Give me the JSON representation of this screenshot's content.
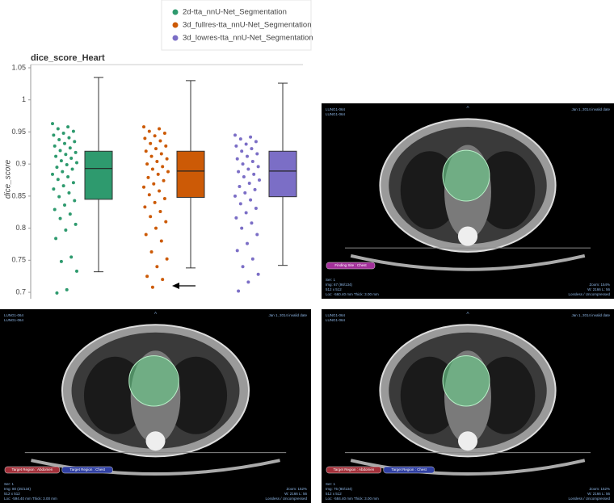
{
  "chart_data": {
    "type": "box",
    "title": "dice_score_Heart",
    "y_label": "dice_score",
    "ylim": [
      0.69,
      1.055
    ],
    "yticks": [
      0.7,
      0.75,
      0.8,
      0.85,
      0.9,
      0.95,
      1,
      1.05
    ],
    "grid": false,
    "series": [
      {
        "name": "2d-tta_nnU-Net_Segmentation",
        "color": "#2e9a6e",
        "whisker_low": 0.732,
        "q1": 0.845,
        "median": 0.893,
        "q3": 0.92,
        "whisker_high": 1.035,
        "values": [
          0.963,
          0.958,
          0.955,
          0.951,
          0.948,
          0.945,
          0.941,
          0.938,
          0.935,
          0.932,
          0.928,
          0.925,
          0.921,
          0.918,
          0.915,
          0.912,
          0.909,
          0.905,
          0.902,
          0.899,
          0.895,
          0.892,
          0.888,
          0.884,
          0.88,
          0.876,
          0.871,
          0.866,
          0.861,
          0.855,
          0.849,
          0.843,
          0.836,
          0.829,
          0.822,
          0.815,
          0.806,
          0.797,
          0.784,
          0.755,
          0.748,
          0.733,
          0.704,
          0.699
        ]
      },
      {
        "name": "3d_fullres-tta_nnU-Net_Segmentation",
        "color": "#cc5a06",
        "whisker_low": 0.738,
        "q1": 0.848,
        "median": 0.889,
        "q3": 0.92,
        "whisker_high": 1.03,
        "values": [
          0.958,
          0.955,
          0.951,
          0.948,
          0.944,
          0.94,
          0.936,
          0.932,
          0.928,
          0.924,
          0.92,
          0.916,
          0.912,
          0.908,
          0.904,
          0.9,
          0.896,
          0.892,
          0.888,
          0.884,
          0.879,
          0.874,
          0.869,
          0.864,
          0.858,
          0.852,
          0.846,
          0.84,
          0.833,
          0.826,
          0.818,
          0.81,
          0.8,
          0.79,
          0.78,
          0.763,
          0.752,
          0.74,
          0.725,
          0.72,
          0.708
        ]
      },
      {
        "name": "3d_lowres-tta_nnU-Net_Segmentation",
        "color": "#7b6ec6",
        "whisker_low": 0.742,
        "q1": 0.849,
        "median": 0.889,
        "q3": 0.92,
        "whisker_high": 1.026,
        "values": [
          0.945,
          0.942,
          0.939,
          0.935,
          0.931,
          0.928,
          0.924,
          0.92,
          0.916,
          0.912,
          0.908,
          0.904,
          0.9,
          0.896,
          0.892,
          0.888,
          0.884,
          0.88,
          0.875,
          0.87,
          0.865,
          0.86,
          0.855,
          0.85,
          0.844,
          0.838,
          0.831,
          0.824,
          0.816,
          0.808,
          0.8,
          0.79,
          0.776,
          0.765,
          0.752,
          0.74,
          0.728,
          0.716,
          0.702
        ]
      }
    ]
  },
  "scans": [
    {
      "ids": [
        "LUNG1-064",
        "LUNG1-064"
      ],
      "date": "Jan 1, 2014 invalid date",
      "orientation": "A",
      "tags": [
        {
          "text": "Finding Site : Chest",
          "color": "#a3309a"
        }
      ],
      "info_left": [
        "Ser: 1",
        "Img: 67 (98/134)",
        "512 x 512",
        "Loc: -560.40 mm Thick: 3.00 mm"
      ],
      "info_right": [
        "Zoom: 154%",
        "W: 2166 L: 56",
        "Lossless / Uncompressed"
      ]
    },
    {
      "ids": [
        "LUNG1-064",
        "LUNG1-064"
      ],
      "date": "Jan 1, 2014 invalid date",
      "orientation": "A",
      "tags": [
        {
          "text": "Target Region : Abdomen",
          "color": "#a3303a"
        },
        {
          "text": "Target Region : Chest",
          "color": "#3040a3"
        }
      ],
      "info_left": [
        "Ser: 1",
        "Img: 80 (25/134)",
        "512 x 512",
        "Loc: -594.40 mm Thick: 3.00 mm"
      ],
      "info_right": [
        "Zoom: 152%",
        "W: 2166 L: 56",
        "Lossless / Uncompressed"
      ]
    },
    {
      "ids": [
        "LUNG1-064",
        "LUNG1-064"
      ],
      "date": "Jan 1, 2014 invalid date",
      "orientation": "A",
      "tags": [
        {
          "text": "Target Region : Abdomen",
          "color": "#a3303a"
        },
        {
          "text": "Target Region : Chest",
          "color": "#3040a3"
        }
      ],
      "info_left": [
        "Ser: 1",
        "Img: 75 (80/134)",
        "512 x 512",
        "Loc: -584.40 mm Thick: 3.00 mm"
      ],
      "info_right": [
        "Zoom: 152%",
        "W: 2166 L: 56",
        "Lossless / Uncompressed"
      ]
    }
  ]
}
